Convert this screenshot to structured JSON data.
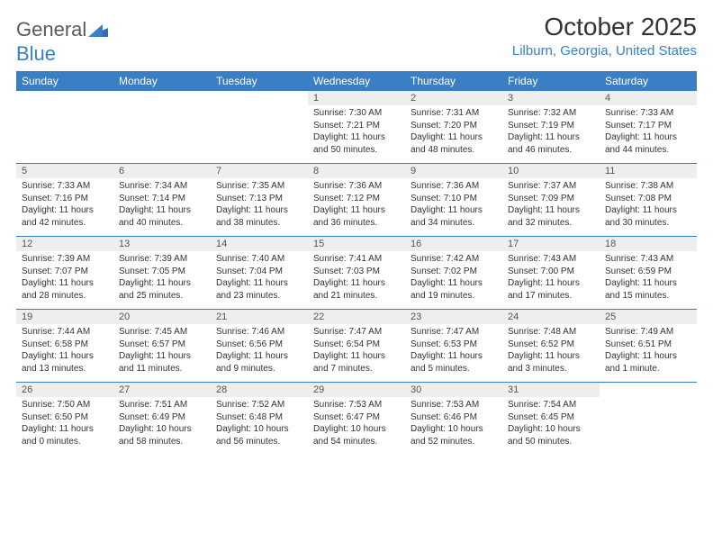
{
  "brand": {
    "part1": "General",
    "part2": "Blue"
  },
  "title": "October 2025",
  "location": "Lilburn, Georgia, United States",
  "colors": {
    "accent": "#3a7fc4",
    "daynum_bg": "#eeeeee",
    "text": "#333333",
    "background": "#ffffff"
  },
  "dow": [
    "Sunday",
    "Monday",
    "Tuesday",
    "Wednesday",
    "Thursday",
    "Friday",
    "Saturday"
  ],
  "weeks": [
    [
      null,
      null,
      null,
      {
        "n": "1",
        "sr": "Sunrise: 7:30 AM",
        "ss": "Sunset: 7:21 PM",
        "d1": "Daylight: 11 hours",
        "d2": "and 50 minutes."
      },
      {
        "n": "2",
        "sr": "Sunrise: 7:31 AM",
        "ss": "Sunset: 7:20 PM",
        "d1": "Daylight: 11 hours",
        "d2": "and 48 minutes."
      },
      {
        "n": "3",
        "sr": "Sunrise: 7:32 AM",
        "ss": "Sunset: 7:19 PM",
        "d1": "Daylight: 11 hours",
        "d2": "and 46 minutes."
      },
      {
        "n": "4",
        "sr": "Sunrise: 7:33 AM",
        "ss": "Sunset: 7:17 PM",
        "d1": "Daylight: 11 hours",
        "d2": "and 44 minutes."
      }
    ],
    [
      {
        "n": "5",
        "sr": "Sunrise: 7:33 AM",
        "ss": "Sunset: 7:16 PM",
        "d1": "Daylight: 11 hours",
        "d2": "and 42 minutes."
      },
      {
        "n": "6",
        "sr": "Sunrise: 7:34 AM",
        "ss": "Sunset: 7:14 PM",
        "d1": "Daylight: 11 hours",
        "d2": "and 40 minutes."
      },
      {
        "n": "7",
        "sr": "Sunrise: 7:35 AM",
        "ss": "Sunset: 7:13 PM",
        "d1": "Daylight: 11 hours",
        "d2": "and 38 minutes."
      },
      {
        "n": "8",
        "sr": "Sunrise: 7:36 AM",
        "ss": "Sunset: 7:12 PM",
        "d1": "Daylight: 11 hours",
        "d2": "and 36 minutes."
      },
      {
        "n": "9",
        "sr": "Sunrise: 7:36 AM",
        "ss": "Sunset: 7:10 PM",
        "d1": "Daylight: 11 hours",
        "d2": "and 34 minutes."
      },
      {
        "n": "10",
        "sr": "Sunrise: 7:37 AM",
        "ss": "Sunset: 7:09 PM",
        "d1": "Daylight: 11 hours",
        "d2": "and 32 minutes."
      },
      {
        "n": "11",
        "sr": "Sunrise: 7:38 AM",
        "ss": "Sunset: 7:08 PM",
        "d1": "Daylight: 11 hours",
        "d2": "and 30 minutes."
      }
    ],
    [
      {
        "n": "12",
        "sr": "Sunrise: 7:39 AM",
        "ss": "Sunset: 7:07 PM",
        "d1": "Daylight: 11 hours",
        "d2": "and 28 minutes."
      },
      {
        "n": "13",
        "sr": "Sunrise: 7:39 AM",
        "ss": "Sunset: 7:05 PM",
        "d1": "Daylight: 11 hours",
        "d2": "and 25 minutes."
      },
      {
        "n": "14",
        "sr": "Sunrise: 7:40 AM",
        "ss": "Sunset: 7:04 PM",
        "d1": "Daylight: 11 hours",
        "d2": "and 23 minutes."
      },
      {
        "n": "15",
        "sr": "Sunrise: 7:41 AM",
        "ss": "Sunset: 7:03 PM",
        "d1": "Daylight: 11 hours",
        "d2": "and 21 minutes."
      },
      {
        "n": "16",
        "sr": "Sunrise: 7:42 AM",
        "ss": "Sunset: 7:02 PM",
        "d1": "Daylight: 11 hours",
        "d2": "and 19 minutes."
      },
      {
        "n": "17",
        "sr": "Sunrise: 7:43 AM",
        "ss": "Sunset: 7:00 PM",
        "d1": "Daylight: 11 hours",
        "d2": "and 17 minutes."
      },
      {
        "n": "18",
        "sr": "Sunrise: 7:43 AM",
        "ss": "Sunset: 6:59 PM",
        "d1": "Daylight: 11 hours",
        "d2": "and 15 minutes."
      }
    ],
    [
      {
        "n": "19",
        "sr": "Sunrise: 7:44 AM",
        "ss": "Sunset: 6:58 PM",
        "d1": "Daylight: 11 hours",
        "d2": "and 13 minutes."
      },
      {
        "n": "20",
        "sr": "Sunrise: 7:45 AM",
        "ss": "Sunset: 6:57 PM",
        "d1": "Daylight: 11 hours",
        "d2": "and 11 minutes."
      },
      {
        "n": "21",
        "sr": "Sunrise: 7:46 AM",
        "ss": "Sunset: 6:56 PM",
        "d1": "Daylight: 11 hours",
        "d2": "and 9 minutes."
      },
      {
        "n": "22",
        "sr": "Sunrise: 7:47 AM",
        "ss": "Sunset: 6:54 PM",
        "d1": "Daylight: 11 hours",
        "d2": "and 7 minutes."
      },
      {
        "n": "23",
        "sr": "Sunrise: 7:47 AM",
        "ss": "Sunset: 6:53 PM",
        "d1": "Daylight: 11 hours",
        "d2": "and 5 minutes."
      },
      {
        "n": "24",
        "sr": "Sunrise: 7:48 AM",
        "ss": "Sunset: 6:52 PM",
        "d1": "Daylight: 11 hours",
        "d2": "and 3 minutes."
      },
      {
        "n": "25",
        "sr": "Sunrise: 7:49 AM",
        "ss": "Sunset: 6:51 PM",
        "d1": "Daylight: 11 hours",
        "d2": "and 1 minute."
      }
    ],
    [
      {
        "n": "26",
        "sr": "Sunrise: 7:50 AM",
        "ss": "Sunset: 6:50 PM",
        "d1": "Daylight: 11 hours",
        "d2": "and 0 minutes."
      },
      {
        "n": "27",
        "sr": "Sunrise: 7:51 AM",
        "ss": "Sunset: 6:49 PM",
        "d1": "Daylight: 10 hours",
        "d2": "and 58 minutes."
      },
      {
        "n": "28",
        "sr": "Sunrise: 7:52 AM",
        "ss": "Sunset: 6:48 PM",
        "d1": "Daylight: 10 hours",
        "d2": "and 56 minutes."
      },
      {
        "n": "29",
        "sr": "Sunrise: 7:53 AM",
        "ss": "Sunset: 6:47 PM",
        "d1": "Daylight: 10 hours",
        "d2": "and 54 minutes."
      },
      {
        "n": "30",
        "sr": "Sunrise: 7:53 AM",
        "ss": "Sunset: 6:46 PM",
        "d1": "Daylight: 10 hours",
        "d2": "and 52 minutes."
      },
      {
        "n": "31",
        "sr": "Sunrise: 7:54 AM",
        "ss": "Sunset: 6:45 PM",
        "d1": "Daylight: 10 hours",
        "d2": "and 50 minutes."
      },
      null
    ]
  ]
}
